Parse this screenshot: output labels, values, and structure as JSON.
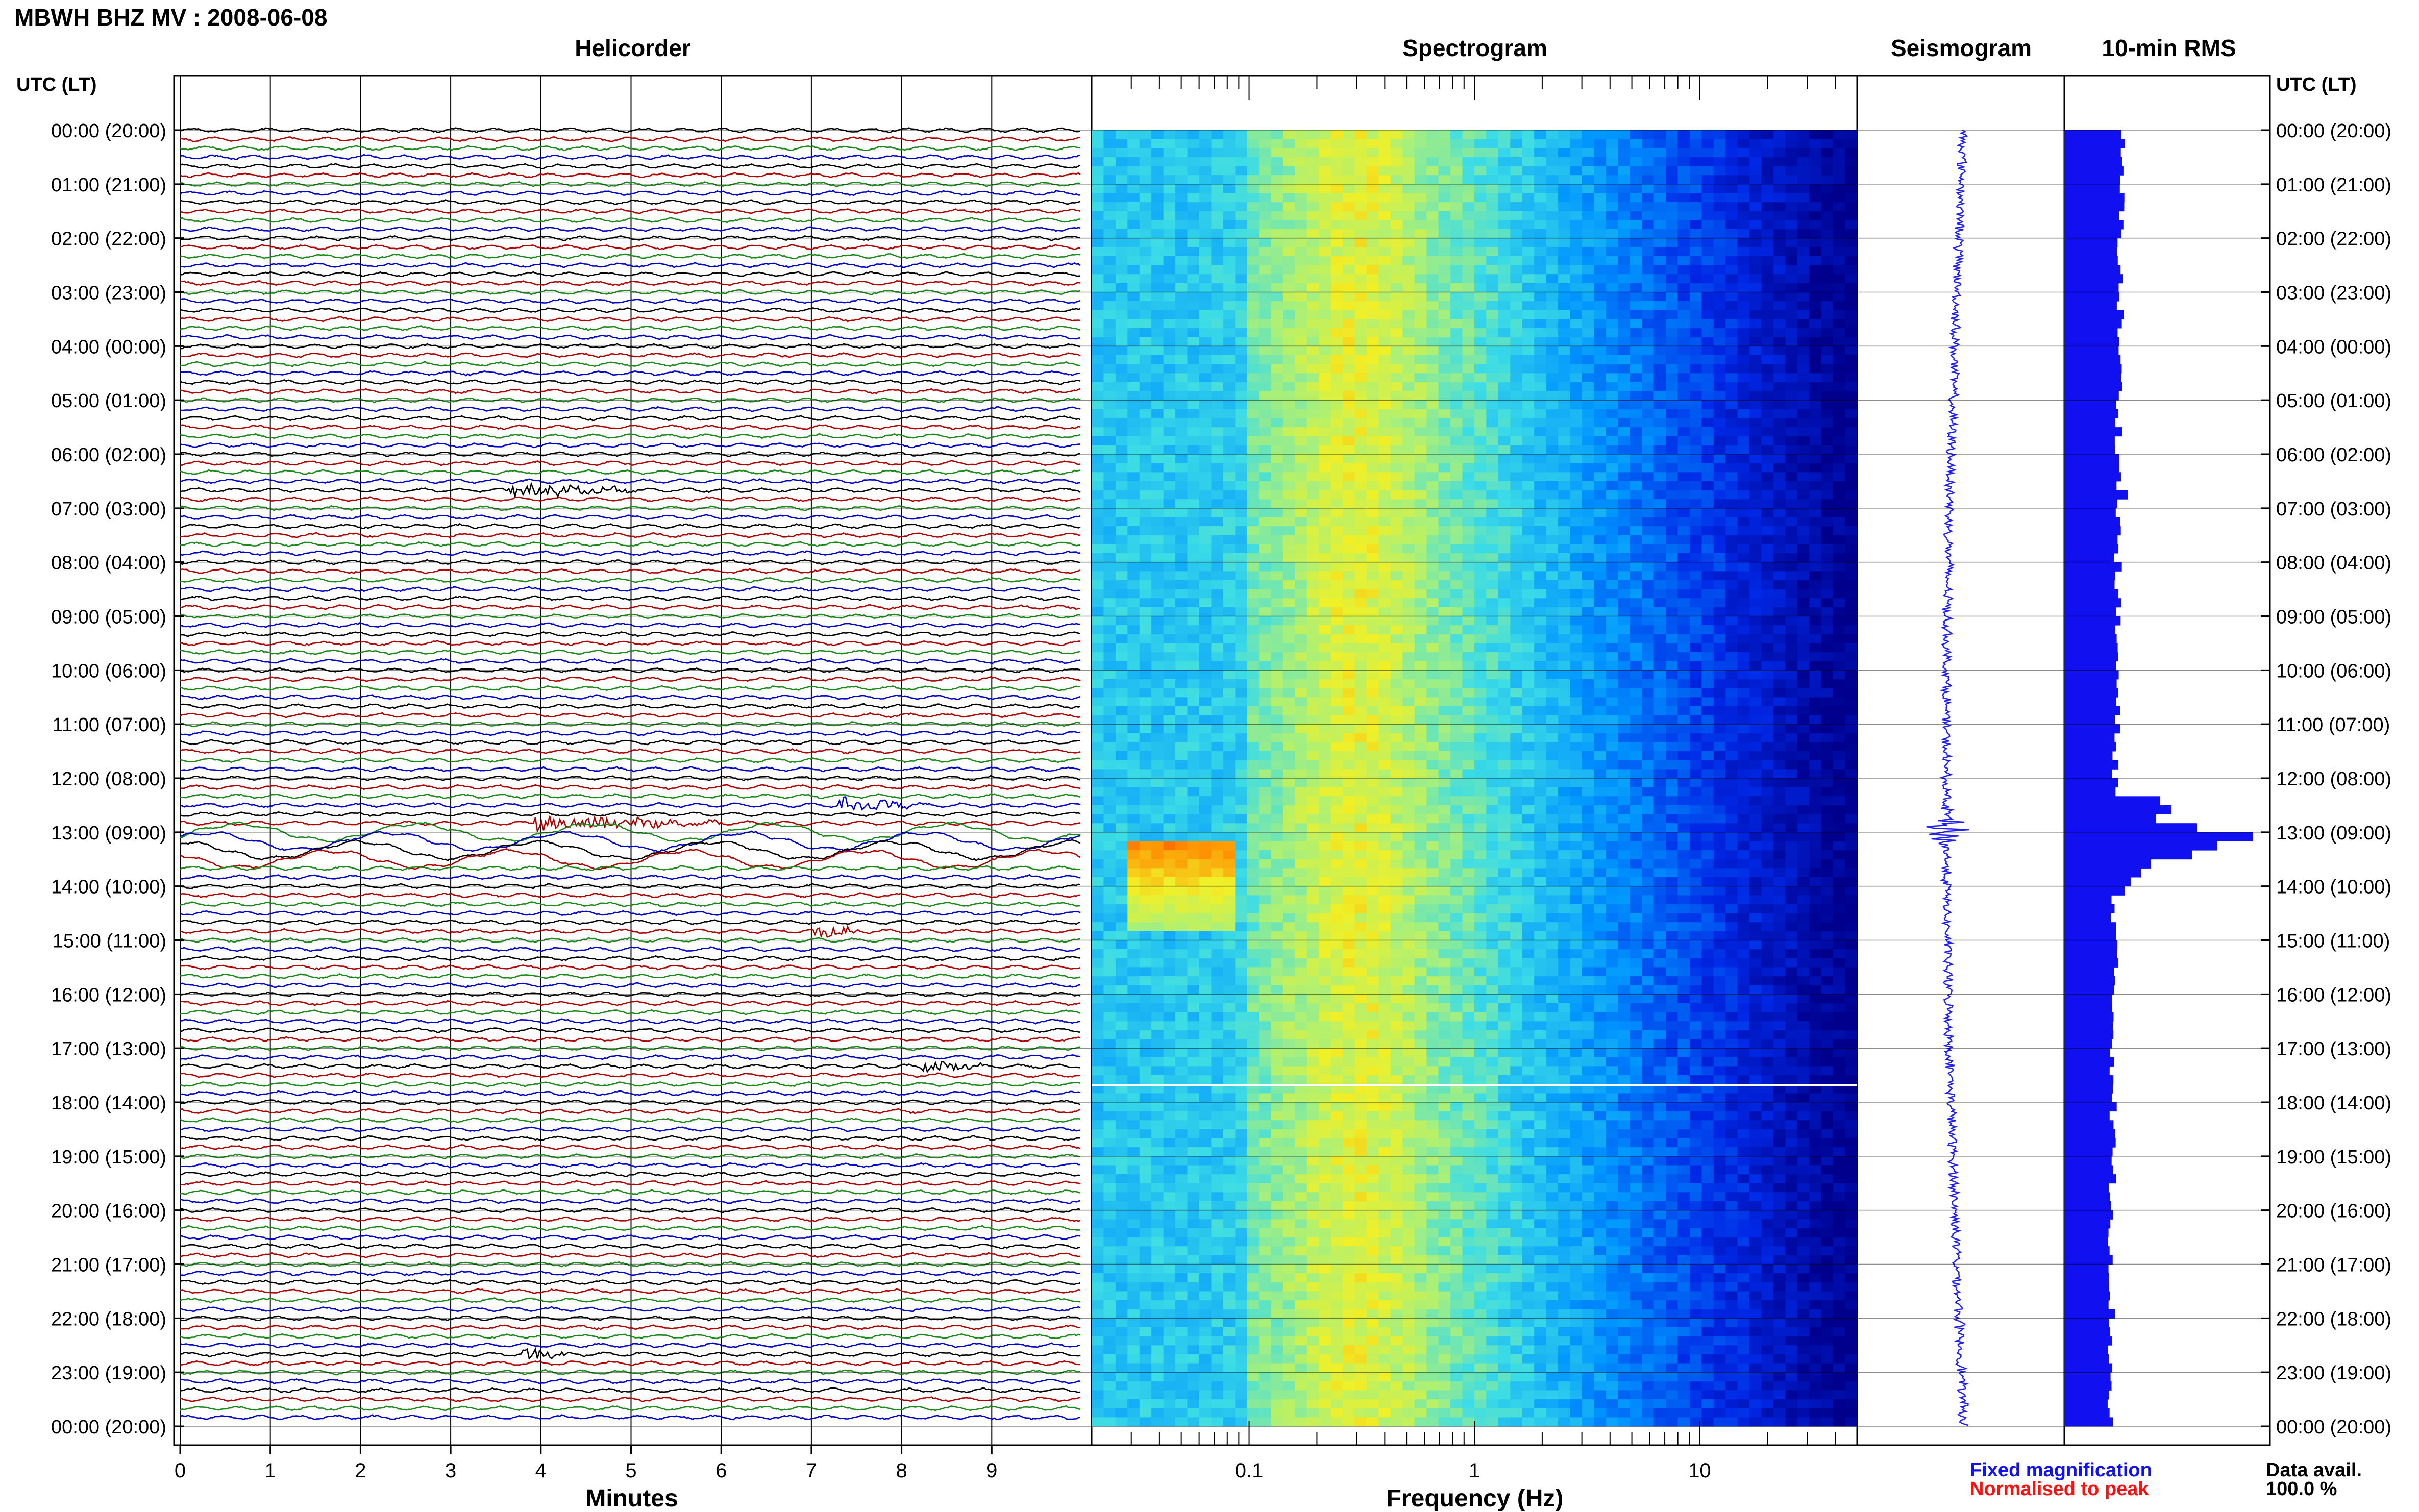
{
  "title": "MBWH BHZ MV : 2008-06-08",
  "panels": {
    "helicorder": "Helicorder",
    "spectrogram": "Spectrogram",
    "seismogram": "Seismogram",
    "rms": "10-min RMS"
  },
  "axis_titles": {
    "left": "UTC (LT)",
    "right": "UTC (LT)",
    "minutes": "Minutes",
    "frequency": "Frequency (Hz)"
  },
  "legend": {
    "fixed": "Fixed magnification",
    "normalised": "Normalised to peak",
    "avail_label": "Data avail.",
    "avail_value": "100.0 %"
  },
  "colors": {
    "trace_cycle": [
      "#000000",
      "#b00000",
      "#1a8a1a",
      "#0000cc"
    ],
    "seismogram": "#2020ff",
    "rms": "#1010f0",
    "spec_low": "#00008b",
    "spec_high": "#ff2000"
  },
  "chart_data": [
    {
      "type": "line",
      "panel": "helicorder",
      "title": "Helicorder",
      "xlabel": "Minutes",
      "x_ticks": [
        0,
        1,
        2,
        3,
        4,
        5,
        6,
        7,
        8,
        9
      ],
      "xlim": [
        0,
        10
      ],
      "rows_per_hour": 6,
      "row_minutes": 10,
      "time_labels": [
        "00:00 (20:00)",
        "01:00 (21:00)",
        "02:00 (22:00)",
        "03:00 (23:00)",
        "04:00 (00:00)",
        "05:00 (01:00)",
        "06:00 (02:00)",
        "07:00 (03:00)",
        "08:00 (04:00)",
        "09:00 (05:00)",
        "10:00 (06:00)",
        "11:00 (07:00)",
        "12:00 (08:00)",
        "13:00 (09:00)",
        "14:00 (10:00)",
        "15:00 (11:00)",
        "16:00 (12:00)",
        "17:00 (13:00)",
        "18:00 (14:00)",
        "19:00 (15:00)",
        "20:00 (16:00)",
        "21:00 (17:00)",
        "22:00 (18:00)",
        "23:00 (19:00)",
        "00:00 (20:00)"
      ],
      "events": [
        {
          "row": 40,
          "start_min": 3.6,
          "end_min": 5.1
        },
        {
          "row": 75,
          "start_min": 7.3,
          "end_min": 8.2
        },
        {
          "row": 77,
          "start_min": 3.9,
          "end_min": 6.0
        },
        {
          "row": 89,
          "start_min": 7.0,
          "end_min": 7.6
        },
        {
          "row": 104,
          "start_min": 8.2,
          "end_min": 8.9
        },
        {
          "row": 136,
          "start_min": 3.8,
          "end_min": 4.3
        }
      ]
    },
    {
      "type": "heatmap",
      "panel": "spectrogram",
      "title": "Spectrogram",
      "xlabel": "Frequency (Hz)",
      "x_scale": "log",
      "xlim": [
        0.02,
        50
      ],
      "x_ticks": [
        0.1,
        1,
        10
      ]
    },
    {
      "type": "line",
      "panel": "seismogram",
      "title": "Seismogram"
    },
    {
      "type": "bar",
      "panel": "rms",
      "title": "10-min RMS"
    }
  ]
}
